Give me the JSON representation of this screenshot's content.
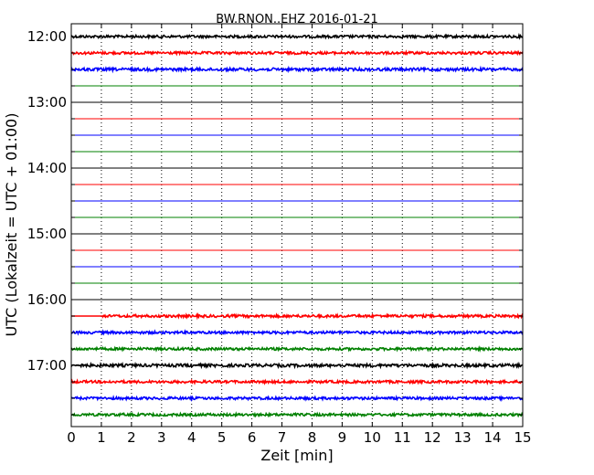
{
  "chart_data": {
    "type": "line",
    "title": "BW.RNON..EHZ 2016-01-21",
    "xlabel": "Zeit  [min]",
    "ylabel": "UTC (Lokalzeit = UTC + 01:00)",
    "xlim": [
      0,
      15
    ],
    "x_ticks": [
      "0",
      "1",
      "2",
      "3",
      "4",
      "5",
      "6",
      "7",
      "8",
      "9",
      "10",
      "11",
      "12",
      "13",
      "14",
      "15"
    ],
    "y_ticks": [
      "12:00",
      "13:00",
      "14:00",
      "15:00",
      "16:00",
      "17:00"
    ],
    "grid": "vertical-dotted",
    "series_colors": [
      "#000000",
      "#ff0000",
      "#0000ff",
      "#008000"
    ],
    "traces": [
      {
        "label": "12:00",
        "color": "#000000",
        "amplitude": 1.4
      },
      {
        "label": "12:15",
        "color": "#ff0000",
        "amplitude": 1.4
      },
      {
        "label": "12:30",
        "color": "#0000ff",
        "amplitude": 1.6
      },
      {
        "label": "12:45",
        "color": "#008000",
        "amplitude": 0.2
      },
      {
        "label": "13:00",
        "color": "#000000",
        "amplitude": 0.2
      },
      {
        "label": "13:15",
        "color": "#ff0000",
        "amplitude": 0.2
      },
      {
        "label": "13:30",
        "color": "#0000ff",
        "amplitude": 0.2
      },
      {
        "label": "13:45",
        "color": "#008000",
        "amplitude": 0.2
      },
      {
        "label": "14:00",
        "color": "#000000",
        "amplitude": 0.2
      },
      {
        "label": "14:15",
        "color": "#ff0000",
        "amplitude": 0.2
      },
      {
        "label": "14:30",
        "color": "#0000ff",
        "amplitude": 0.2
      },
      {
        "label": "14:45",
        "color": "#008000",
        "amplitude": 0.2
      },
      {
        "label": "15:00",
        "color": "#000000",
        "amplitude": 0.2
      },
      {
        "label": "15:15",
        "color": "#ff0000",
        "amplitude": 0.2
      },
      {
        "label": "15:30",
        "color": "#0000ff",
        "amplitude": 0.2
      },
      {
        "label": "15:45",
        "color": "#008000",
        "amplitude": 0.2
      },
      {
        "label": "16:00",
        "color": "#000000",
        "amplitude": 0.2
      },
      {
        "label": "16:15",
        "color": "#ff0000",
        "amplitude": 1.4
      },
      {
        "label": "16:30",
        "color": "#0000ff",
        "amplitude": 1.4
      },
      {
        "label": "16:45",
        "color": "#008000",
        "amplitude": 1.4
      },
      {
        "label": "17:00",
        "color": "#000000",
        "amplitude": 1.6
      },
      {
        "label": "17:15",
        "color": "#ff0000",
        "amplitude": 1.4
      },
      {
        "label": "17:30",
        "color": "#0000ff",
        "amplitude": 1.4
      },
      {
        "label": "17:45",
        "color": "#008000",
        "amplitude": 1.4
      }
    ]
  }
}
